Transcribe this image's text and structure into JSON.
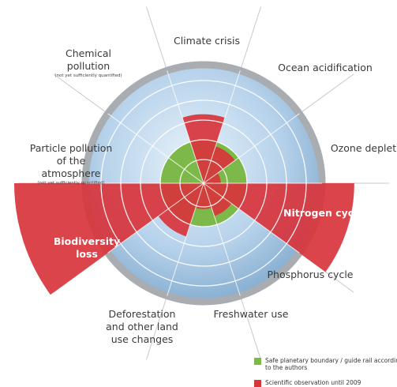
{
  "chart_data": {
    "type": "radial",
    "categories": [
      "Climate crisis",
      "Ocean acidification",
      "Ozone depletion",
      "Nitrogen cycle",
      "Phosphorus cycle",
      "Freshwater use",
      "Deforestation and other land use changes",
      "Biodiversity loss",
      "Particle pollution of the atmosphere",
      "Chemical pollution"
    ],
    "notes": [
      null,
      null,
      null,
      null,
      null,
      null,
      null,
      null,
      "(not yet sufficiently quantified)",
      "(not yet sufficiently quantified)"
    ],
    "series": [
      {
        "name": "Scientific observation until 2009",
        "color": "#d8343c",
        "values": [
          1.6,
          0.9,
          0.4,
          3.5,
          0.8,
          0.6,
          1.3,
          4.4,
          null,
          null
        ]
      }
    ],
    "boundary": {
      "name": "Safe planetary boundary / guide rail according to the authors",
      "color": "#7cb84a",
      "value": 1
    },
    "rlim": [
      0,
      2.75
    ]
  }
}
